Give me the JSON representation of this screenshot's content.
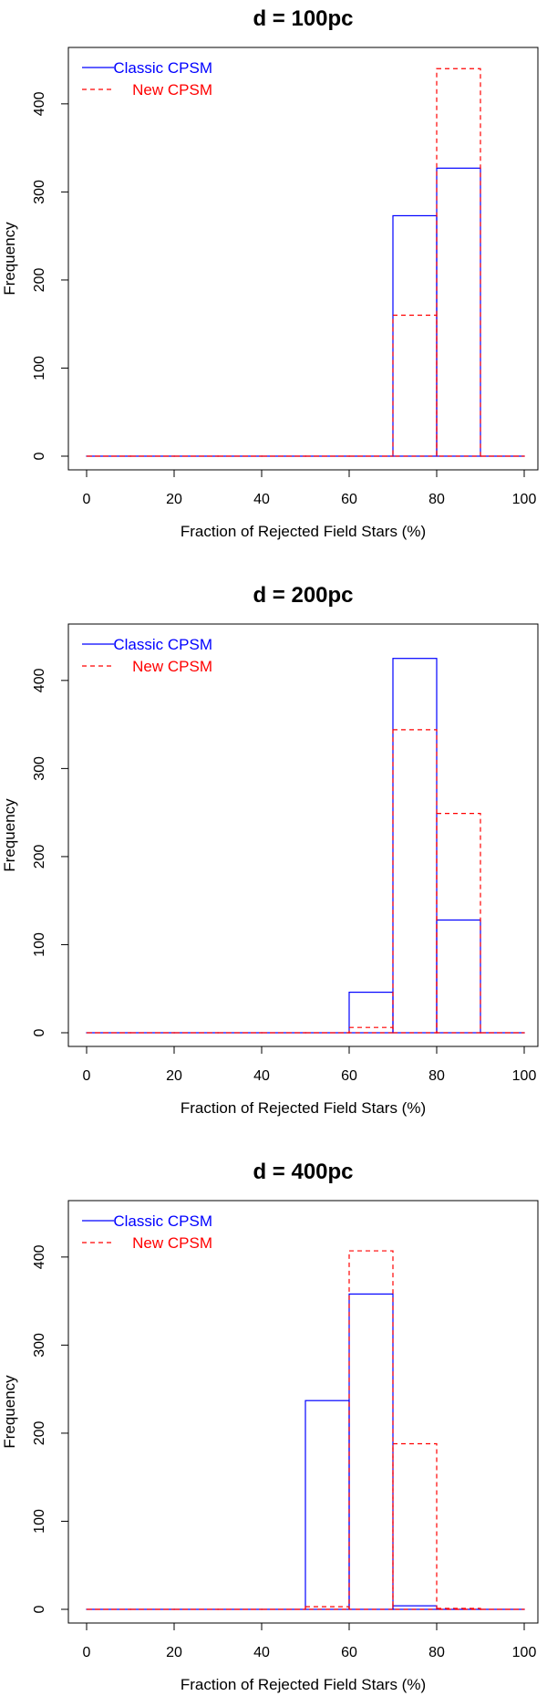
{
  "chart_data": [
    {
      "type": "bar",
      "title": "d = 100pc",
      "xlabel": "Fraction of Rejected Field Stars (%)",
      "ylabel": "Frequency",
      "xlim": [
        0,
        100
      ],
      "ylim": [
        0,
        450
      ],
      "xticks": [
        0,
        20,
        40,
        60,
        80,
        100
      ],
      "yticks": [
        0,
        100,
        200,
        300,
        400
      ],
      "bin_edges": [
        0,
        10,
        20,
        30,
        40,
        50,
        60,
        70,
        80,
        90,
        100
      ],
      "series": [
        {
          "name": "Classic CPSM",
          "line_style": "solid",
          "color": "#0000ff",
          "values": [
            0,
            0,
            0,
            0,
            0,
            0,
            0,
            273,
            327,
            0
          ]
        },
        {
          "name": "New CPSM",
          "line_style": "dashed",
          "color": "#ff0000",
          "values": [
            0,
            0,
            0,
            0,
            0,
            0,
            0,
            160,
            440,
            0
          ]
        }
      ],
      "legend": "top-left"
    },
    {
      "type": "bar",
      "title": "d = 200pc",
      "xlabel": "Fraction of Rejected Field Stars (%)",
      "ylabel": "Frequency",
      "xlim": [
        0,
        100
      ],
      "ylim": [
        0,
        450
      ],
      "xticks": [
        0,
        20,
        40,
        60,
        80,
        100
      ],
      "yticks": [
        0,
        100,
        200,
        300,
        400
      ],
      "bin_edges": [
        0,
        10,
        20,
        30,
        40,
        50,
        60,
        70,
        80,
        90,
        100
      ],
      "series": [
        {
          "name": "Classic CPSM",
          "line_style": "solid",
          "color": "#0000ff",
          "values": [
            0,
            0,
            0,
            0,
            0,
            0,
            46,
            425,
            128,
            0
          ]
        },
        {
          "name": "New CPSM",
          "line_style": "dashed",
          "color": "#ff0000",
          "values": [
            0,
            0,
            0,
            0,
            0,
            0,
            6,
            344,
            249,
            0
          ]
        }
      ],
      "legend": "top-left"
    },
    {
      "type": "bar",
      "title": "d = 400pc",
      "xlabel": "Fraction of Rejected Field Stars (%)",
      "ylabel": "Frequency",
      "xlim": [
        0,
        100
      ],
      "ylim": [
        0,
        450
      ],
      "xticks": [
        0,
        20,
        40,
        60,
        80,
        100
      ],
      "yticks": [
        0,
        100,
        200,
        300,
        400
      ],
      "bin_edges": [
        0,
        10,
        20,
        30,
        40,
        50,
        60,
        70,
        80,
        90,
        100
      ],
      "series": [
        {
          "name": "Classic CPSM",
          "line_style": "solid",
          "color": "#0000ff",
          "values": [
            0,
            0,
            0,
            0,
            0,
            237,
            358,
            4,
            0,
            0
          ]
        },
        {
          "name": "New CPSM",
          "line_style": "dashed",
          "color": "#ff0000",
          "values": [
            0,
            0,
            0,
            0,
            0,
            3,
            407,
            188,
            1,
            0
          ]
        }
      ],
      "legend": "top-left"
    }
  ]
}
